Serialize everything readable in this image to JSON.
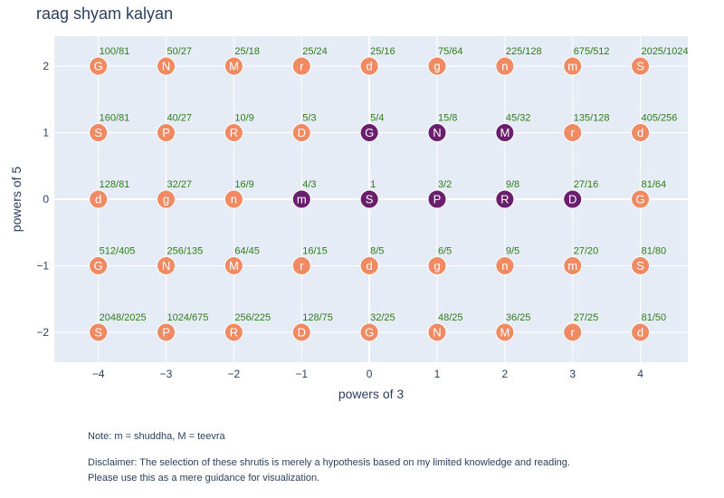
{
  "chart_data": {
    "type": "scatter",
    "title": "raag shyam kalyan",
    "xlabel": "powers of 3",
    "ylabel": "powers of 5",
    "xlim": [
      -4.65,
      4.7
    ],
    "ylim": [
      -2.45,
      2.45
    ],
    "x_ticks": [
      -4,
      -3,
      -2,
      -1,
      0,
      1,
      2,
      3,
      4
    ],
    "y_ticks": [
      -2,
      -1,
      0,
      1,
      2
    ],
    "grid": true,
    "colors": {
      "default": "#ef8a62",
      "selected": "#6a1f6e",
      "ratio_text": "#2e7d1a",
      "plot_bg": "#e5ecf6"
    },
    "points": [
      {
        "x": -4,
        "y": 2,
        "label": "G",
        "ratio": "100/81",
        "selected": false
      },
      {
        "x": -3,
        "y": 2,
        "label": "N",
        "ratio": "50/27",
        "selected": false
      },
      {
        "x": -2,
        "y": 2,
        "label": "M",
        "ratio": "25/18",
        "selected": false
      },
      {
        "x": -1,
        "y": 2,
        "label": "r",
        "ratio": "25/24",
        "selected": false
      },
      {
        "x": 0,
        "y": 2,
        "label": "d",
        "ratio": "25/16",
        "selected": false
      },
      {
        "x": 1,
        "y": 2,
        "label": "g",
        "ratio": "75/64",
        "selected": false
      },
      {
        "x": 2,
        "y": 2,
        "label": "n",
        "ratio": "225/128",
        "selected": false
      },
      {
        "x": 3,
        "y": 2,
        "label": "m",
        "ratio": "675/512",
        "selected": false
      },
      {
        "x": 4,
        "y": 2,
        "label": "S",
        "ratio": "2025/1024",
        "selected": false
      },
      {
        "x": -4,
        "y": 1,
        "label": "S",
        "ratio": "160/81",
        "selected": false
      },
      {
        "x": -3,
        "y": 1,
        "label": "P",
        "ratio": "40/27",
        "selected": false
      },
      {
        "x": -2,
        "y": 1,
        "label": "R",
        "ratio": "10/9",
        "selected": false
      },
      {
        "x": -1,
        "y": 1,
        "label": "D",
        "ratio": "5/3",
        "selected": false
      },
      {
        "x": 0,
        "y": 1,
        "label": "G",
        "ratio": "5/4",
        "selected": true
      },
      {
        "x": 1,
        "y": 1,
        "label": "N",
        "ratio": "15/8",
        "selected": true
      },
      {
        "x": 2,
        "y": 1,
        "label": "M",
        "ratio": "45/32",
        "selected": true
      },
      {
        "x": 3,
        "y": 1,
        "label": "r",
        "ratio": "135/128",
        "selected": false
      },
      {
        "x": 4,
        "y": 1,
        "label": "d",
        "ratio": "405/256",
        "selected": false
      },
      {
        "x": -4,
        "y": 0,
        "label": "d",
        "ratio": "128/81",
        "selected": false
      },
      {
        "x": -3,
        "y": 0,
        "label": "g",
        "ratio": "32/27",
        "selected": false
      },
      {
        "x": -2,
        "y": 0,
        "label": "n",
        "ratio": "16/9",
        "selected": false
      },
      {
        "x": -1,
        "y": 0,
        "label": "m",
        "ratio": "4/3",
        "selected": true
      },
      {
        "x": 0,
        "y": 0,
        "label": "S",
        "ratio": "1",
        "selected": true
      },
      {
        "x": 1,
        "y": 0,
        "label": "P",
        "ratio": "3/2",
        "selected": true
      },
      {
        "x": 2,
        "y": 0,
        "label": "R",
        "ratio": "9/8",
        "selected": true
      },
      {
        "x": 3,
        "y": 0,
        "label": "D",
        "ratio": "27/16",
        "selected": true
      },
      {
        "x": 4,
        "y": 0,
        "label": "G",
        "ratio": "81/64",
        "selected": false
      },
      {
        "x": -4,
        "y": -1,
        "label": "G",
        "ratio": "512/405",
        "selected": false
      },
      {
        "x": -3,
        "y": -1,
        "label": "N",
        "ratio": "256/135",
        "selected": false
      },
      {
        "x": -2,
        "y": -1,
        "label": "M",
        "ratio": "64/45",
        "selected": false
      },
      {
        "x": -1,
        "y": -1,
        "label": "r",
        "ratio": "16/15",
        "selected": false
      },
      {
        "x": 0,
        "y": -1,
        "label": "d",
        "ratio": "8/5",
        "selected": false
      },
      {
        "x": 1,
        "y": -1,
        "label": "g",
        "ratio": "6/5",
        "selected": false
      },
      {
        "x": 2,
        "y": -1,
        "label": "n",
        "ratio": "9/5",
        "selected": false
      },
      {
        "x": 3,
        "y": -1,
        "label": "m",
        "ratio": "27/20",
        "selected": false
      },
      {
        "x": 4,
        "y": -1,
        "label": "S",
        "ratio": "81/80",
        "selected": false
      },
      {
        "x": -4,
        "y": -2,
        "label": "S",
        "ratio": "2048/2025",
        "selected": false
      },
      {
        "x": -3,
        "y": -2,
        "label": "P",
        "ratio": "1024/675",
        "selected": false
      },
      {
        "x": -2,
        "y": -2,
        "label": "R",
        "ratio": "256/225",
        "selected": false
      },
      {
        "x": -1,
        "y": -2,
        "label": "D",
        "ratio": "128/75",
        "selected": false
      },
      {
        "x": 0,
        "y": -2,
        "label": "G",
        "ratio": "32/25",
        "selected": false
      },
      {
        "x": 1,
        "y": -2,
        "label": "N",
        "ratio": "48/25",
        "selected": false
      },
      {
        "x": 2,
        "y": -2,
        "label": "M",
        "ratio": "36/25",
        "selected": false
      },
      {
        "x": 3,
        "y": -2,
        "label": "r",
        "ratio": "27/25",
        "selected": false
      },
      {
        "x": 4,
        "y": -2,
        "label": "d",
        "ratio": "81/50",
        "selected": false
      }
    ]
  },
  "annotations": {
    "note": "Note: m = shuddha, M = teevra",
    "disclaimer_line1": "Disclaimer: The selection of these shrutis is merely a hypothesis based on my limited knowledge and reading.",
    "disclaimer_line2": "Please use this as a mere guidance for visualization."
  }
}
